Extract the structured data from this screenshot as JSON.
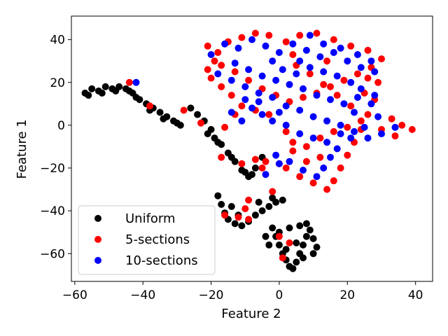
{
  "chart_data": {
    "type": "scatter",
    "title": "",
    "xlabel": "Feature 2",
    "ylabel": "Feature 1",
    "xlim": [
      -61,
      45
    ],
    "ylim": [
      -73,
      51
    ],
    "xticks": [
      -60,
      -40,
      -20,
      0,
      20,
      40
    ],
    "yticks": [
      -60,
      -40,
      -20,
      0,
      20,
      40
    ],
    "xtick_labels": [
      "−60",
      "−40",
      "−20",
      "0",
      "20",
      "40"
    ],
    "ytick_labels": [
      "−60",
      "−40",
      "−20",
      "0",
      "20",
      "40"
    ],
    "grid": false,
    "legend_position": "lower-left",
    "series": [
      {
        "name": "Uniform",
        "color": "#000000",
        "points": [
          [
            -57,
            15
          ],
          [
            -55,
            17
          ],
          [
            -53,
            16
          ],
          [
            -51,
            18
          ],
          [
            -49,
            17
          ],
          [
            -47,
            18
          ],
          [
            -45,
            17
          ],
          [
            -43,
            15
          ],
          [
            -41,
            12
          ],
          [
            -39,
            10
          ],
          [
            -37,
            8
          ],
          [
            -35,
            6
          ],
          [
            -33,
            4
          ],
          [
            -31,
            2
          ],
          [
            -29,
            0
          ],
          [
            -56,
            14
          ],
          [
            -52,
            15
          ],
          [
            -48,
            16
          ],
          [
            -44,
            16
          ],
          [
            -42,
            13
          ],
          [
            -38,
            7
          ],
          [
            -34,
            3
          ],
          [
            -30,
            1
          ],
          [
            -26,
            8
          ],
          [
            -24,
            5
          ],
          [
            -22,
            2
          ],
          [
            -20,
            -2
          ],
          [
            -19,
            -6
          ],
          [
            -17,
            -9
          ],
          [
            -15,
            -13
          ],
          [
            -13,
            -17
          ],
          [
            -11,
            -21
          ],
          [
            -9,
            -24
          ],
          [
            -7,
            -20
          ],
          [
            -5,
            -15
          ],
          [
            -21,
            -4
          ],
          [
            -18,
            -8
          ],
          [
            -14,
            -15
          ],
          [
            -10,
            -22
          ],
          [
            -8,
            -23
          ],
          [
            -18,
            -33
          ],
          [
            -17,
            -37
          ],
          [
            -16,
            -41
          ],
          [
            -15,
            -44
          ],
          [
            -13,
            -46
          ],
          [
            -11,
            -47
          ],
          [
            -9,
            -45
          ],
          [
            -7,
            -42
          ],
          [
            -5,
            -40
          ],
          [
            -3,
            -38
          ],
          [
            -1,
            -36
          ],
          [
            1,
            -35
          ],
          [
            -14,
            -38
          ],
          [
            -12,
            -42
          ],
          [
            -6,
            -36
          ],
          [
            -2,
            -34
          ],
          [
            -2,
            -48
          ],
          [
            -1,
            -52
          ],
          [
            0,
            -56
          ],
          [
            1,
            -60
          ],
          [
            2,
            -63
          ],
          [
            3,
            -66
          ],
          [
            4,
            -67
          ],
          [
            5,
            -64
          ],
          [
            6,
            -60
          ],
          [
            7,
            -56
          ],
          [
            8,
            -52
          ],
          [
            9,
            -49
          ],
          [
            10,
            -53
          ],
          [
            11,
            -57
          ],
          [
            -4,
            -52
          ],
          [
            -3,
            -56
          ],
          [
            0,
            -50
          ],
          [
            3,
            -48
          ],
          [
            6,
            -47
          ],
          [
            8,
            -46
          ],
          [
            10,
            -60
          ],
          [
            2,
            -58
          ],
          [
            5,
            -55
          ],
          [
            7,
            -62
          ]
        ]
      },
      {
        "name": "5-sections",
        "color": "#ff0000",
        "points": [
          [
            -44,
            20
          ],
          [
            -38,
            9
          ],
          [
            -28,
            7
          ],
          [
            -23,
            1
          ],
          [
            -16,
            -1
          ],
          [
            -17,
            -15
          ],
          [
            -11,
            -18
          ],
          [
            -7,
            -16
          ],
          [
            -5,
            -20
          ],
          [
            -2,
            -31
          ],
          [
            -9,
            -35
          ],
          [
            -10,
            -39
          ],
          [
            -12,
            -43
          ],
          [
            -9,
            -44
          ],
          [
            -16,
            -42
          ],
          [
            0,
            -52
          ],
          [
            3,
            -55
          ],
          [
            1,
            -62
          ],
          [
            -21,
            37
          ],
          [
            -19,
            30
          ],
          [
            -15,
            39
          ],
          [
            -11,
            41
          ],
          [
            -7,
            43
          ],
          [
            -3,
            42
          ],
          [
            2,
            39
          ],
          [
            6,
            42
          ],
          [
            11,
            43
          ],
          [
            16,
            40
          ],
          [
            21,
            37
          ],
          [
            26,
            35
          ],
          [
            30,
            31
          ],
          [
            -20,
            22
          ],
          [
            -17,
            28
          ],
          [
            -13,
            25
          ],
          [
            -9,
            21
          ],
          [
            -5,
            17
          ],
          [
            -1,
            14
          ],
          [
            3,
            11
          ],
          [
            7,
            13
          ],
          [
            11,
            15
          ],
          [
            15,
            18
          ],
          [
            19,
            21
          ],
          [
            23,
            24
          ],
          [
            27,
            27
          ],
          [
            29,
            20
          ],
          [
            28,
            12
          ],
          [
            26,
            5
          ],
          [
            24,
            -2
          ],
          [
            22,
            -8
          ],
          [
            20,
            -14
          ],
          [
            18,
            -20
          ],
          [
            16,
            -26
          ],
          [
            14,
            -30
          ],
          [
            10,
            -27
          ],
          [
            6,
            -24
          ],
          [
            2,
            -20
          ],
          [
            0,
            -18
          ],
          [
            -4,
            -17
          ],
          [
            2,
            -3
          ],
          [
            4,
            -8
          ],
          [
            8,
            -10
          ],
          [
            12,
            -6
          ],
          [
            16,
            -3
          ],
          [
            20,
            -1
          ],
          [
            24,
            2
          ],
          [
            30,
            -2
          ],
          [
            33,
            3
          ],
          [
            36,
            0
          ],
          [
            39,
            -2
          ],
          [
            -13,
            5
          ],
          [
            -11,
            9
          ],
          [
            -7,
            7
          ],
          [
            -3,
            5
          ],
          [
            5,
            28
          ],
          [
            9,
            24
          ],
          [
            13,
            19
          ],
          [
            17,
            14
          ],
          [
            21,
            9
          ],
          [
            25,
            15
          ],
          [
            -14,
            14
          ],
          [
            -17,
            18
          ],
          [
            -21,
            26
          ],
          [
            -18,
            34
          ],
          [
            4,
            33
          ],
          [
            14,
            30
          ],
          [
            26,
            22
          ],
          [
            12,
            -15
          ],
          [
            8,
            -17
          ],
          [
            4,
            -12
          ],
          [
            34,
            -5
          ]
        ]
      },
      {
        "name": "10-sections",
        "color": "#0000ff",
        "points": [
          [
            -42,
            20
          ],
          [
            -4,
            -23
          ],
          [
            0,
            -18
          ],
          [
            -20,
            33
          ],
          [
            -16,
            38
          ],
          [
            -12,
            36
          ],
          [
            -8,
            40
          ],
          [
            -4,
            37
          ],
          [
            0,
            34
          ],
          [
            4,
            38
          ],
          [
            8,
            35
          ],
          [
            12,
            32
          ],
          [
            16,
            34
          ],
          [
            20,
            30
          ],
          [
            24,
            27
          ],
          [
            28,
            25
          ],
          [
            -18,
            24
          ],
          [
            -14,
            21
          ],
          [
            -10,
            18
          ],
          [
            -6,
            15
          ],
          [
            -2,
            13
          ],
          [
            2,
            9
          ],
          [
            6,
            7
          ],
          [
            10,
            4
          ],
          [
            14,
            2
          ],
          [
            18,
            0
          ],
          [
            22,
            -3
          ],
          [
            26,
            -6
          ],
          [
            30,
            -4
          ],
          [
            34,
            -1
          ],
          [
            -13,
            29
          ],
          [
            -9,
            26
          ],
          [
            -5,
            23
          ],
          [
            -1,
            21
          ],
          [
            3,
            19
          ],
          [
            7,
            17
          ],
          [
            11,
            14
          ],
          [
            15,
            12
          ],
          [
            19,
            10
          ],
          [
            23,
            13
          ],
          [
            27,
            10
          ],
          [
            29,
            4
          ],
          [
            25,
            -1
          ],
          [
            21,
            -6
          ],
          [
            17,
            -11
          ],
          [
            15,
            -15
          ],
          [
            13,
            -20
          ],
          [
            11,
            -24
          ],
          [
            7,
            -21
          ],
          [
            3,
            -17
          ],
          [
            -1,
            -14
          ],
          [
            -5,
            5
          ],
          [
            -8,
            8
          ],
          [
            -11,
            2
          ],
          [
            1,
            26
          ],
          [
            5,
            24
          ],
          [
            9,
            27
          ],
          [
            13,
            25
          ],
          [
            17,
            23
          ],
          [
            21,
            20
          ],
          [
            24,
            17
          ],
          [
            28,
            14
          ],
          [
            22,
            6
          ],
          [
            18,
            -4
          ],
          [
            14,
            -8
          ],
          [
            10,
            -6
          ],
          [
            6,
            -4
          ],
          [
            2,
            0
          ],
          [
            -2,
            2
          ],
          [
            -6,
            11
          ],
          [
            -10,
            12
          ],
          [
            -14,
            6
          ],
          [
            9,
            42
          ],
          [
            13,
            38
          ],
          [
            18,
            36
          ],
          [
            23,
            33
          ],
          [
            27,
            30
          ],
          [
            -2,
            30
          ],
          [
            6,
            30
          ],
          [
            0,
            6
          ]
        ]
      }
    ]
  }
}
